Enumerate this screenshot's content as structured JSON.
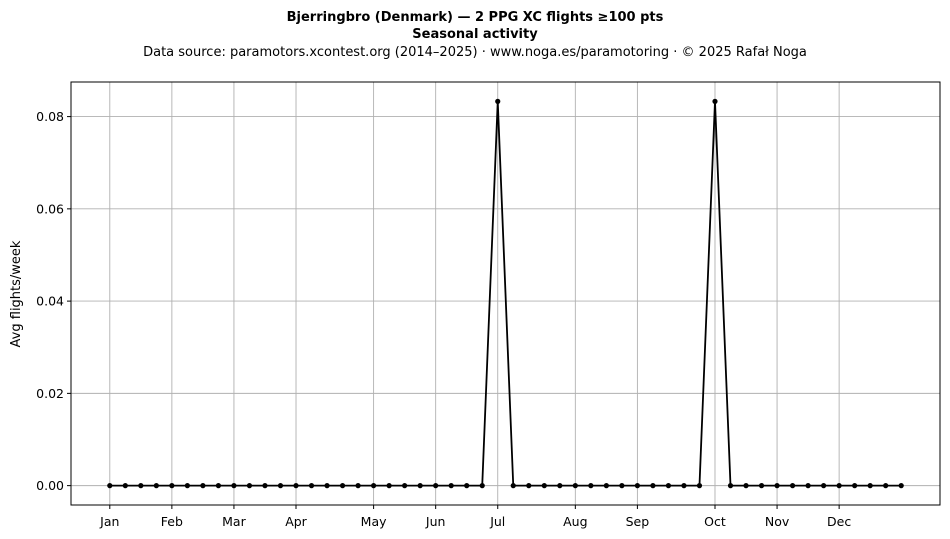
{
  "chart_data": {
    "type": "line",
    "title": "Bjerringbro (Denmark)  —  2 PPG XC flights ≥100 pts",
    "subtitle": "Seasonal activity",
    "source": "Data source: paramotors.xcontest.org (2014–2025)  ·  www.noga.es/paramotoring  ·  © 2025 Rafał Noga",
    "xlabel": "",
    "ylabel": "Avg flights/week",
    "xlim": [
      -1.5,
      54.5
    ],
    "ylim": [
      -0.0042,
      0.0875
    ],
    "grid": true,
    "x_ticks": [
      {
        "label": "Jan",
        "week": 1
      },
      {
        "label": "Feb",
        "week": 5
      },
      {
        "label": "Mar",
        "week": 9
      },
      {
        "label": "Apr",
        "week": 13
      },
      {
        "label": "May",
        "week": 18
      },
      {
        "label": "Jun",
        "week": 22
      },
      {
        "label": "Jul",
        "week": 26
      },
      {
        "label": "Aug",
        "week": 31
      },
      {
        "label": "Sep",
        "week": 35
      },
      {
        "label": "Oct",
        "week": 40
      },
      {
        "label": "Nov",
        "week": 44
      },
      {
        "label": "Dec",
        "week": 48
      }
    ],
    "y_ticks": [
      {
        "label": "0.00",
        "value": 0.0
      },
      {
        "label": "0.02",
        "value": 0.02
      },
      {
        "label": "0.04",
        "value": 0.04
      },
      {
        "label": "0.06",
        "value": 0.06
      },
      {
        "label": "0.08",
        "value": 0.08
      }
    ],
    "series": [
      {
        "color": "#000000",
        "x": [
          1,
          2,
          3,
          4,
          5,
          6,
          7,
          8,
          9,
          10,
          11,
          12,
          13,
          14,
          15,
          16,
          17,
          18,
          19,
          20,
          21,
          22,
          23,
          24,
          25,
          26,
          27,
          28,
          29,
          30,
          31,
          32,
          33,
          34,
          35,
          36,
          37,
          38,
          39,
          40,
          41,
          42,
          43,
          44,
          45,
          46,
          47,
          48,
          49,
          50,
          51,
          52
        ],
        "values": [
          0,
          0,
          0,
          0,
          0,
          0,
          0,
          0,
          0,
          0,
          0,
          0,
          0,
          0,
          0,
          0,
          0,
          0,
          0,
          0,
          0,
          0,
          0,
          0,
          0,
          0.0833,
          0,
          0,
          0,
          0,
          0,
          0,
          0,
          0,
          0,
          0,
          0,
          0,
          0,
          0.0833,
          0,
          0,
          0,
          0,
          0,
          0,
          0,
          0,
          0,
          0,
          0,
          0
        ]
      }
    ]
  }
}
